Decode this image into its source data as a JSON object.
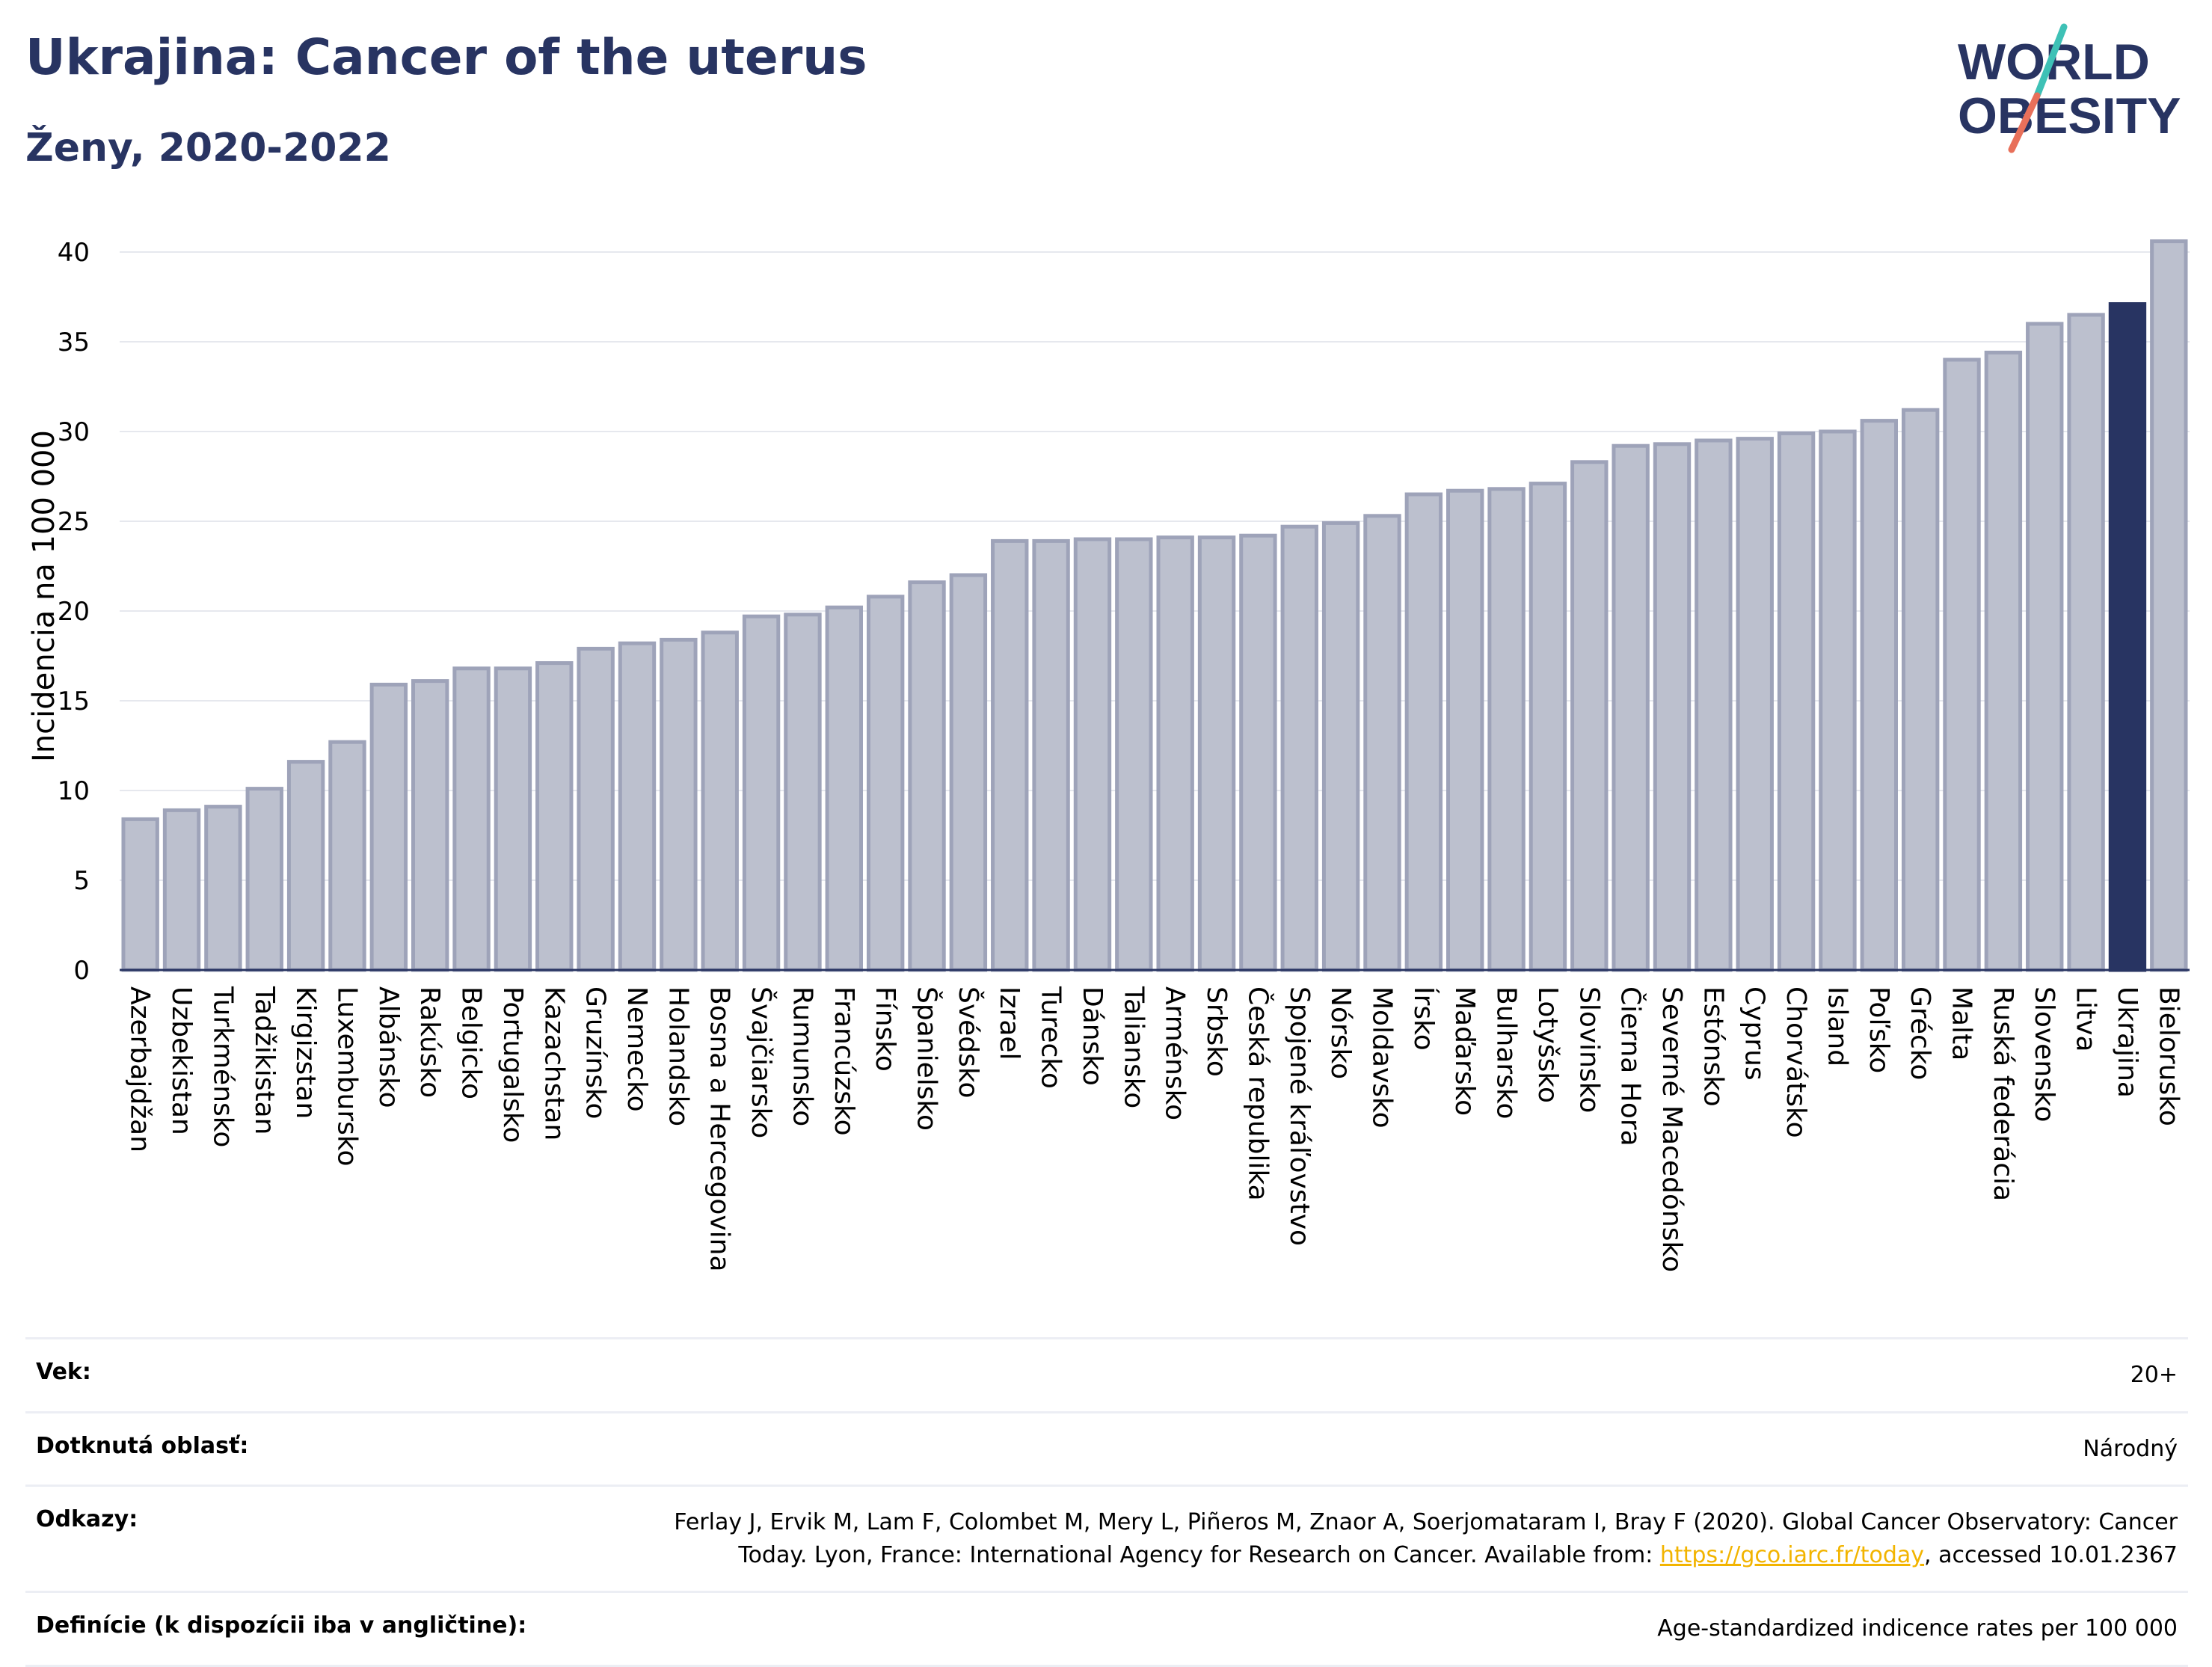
{
  "header": {
    "title": "Ukrajina: Cancer of the uterus",
    "subtitle": "Ženy, 2020-2022"
  },
  "logo": {
    "line1": "WORLD",
    "line2": "OBESITY",
    "slash_colors": [
      "#3ec1b6",
      "#e8705a"
    ]
  },
  "chart_data": {
    "type": "bar",
    "ylabel": "Incidencia na 100 000",
    "ylim": [
      0,
      40
    ],
    "yticks": [
      0,
      5,
      10,
      15,
      20,
      25,
      30,
      35,
      40
    ],
    "grid": true,
    "highlight": "Ukrajina",
    "colors": {
      "bar": "#bcc0ce",
      "bar_edge": "#9ea3b9",
      "highlight": "#283462",
      "axis": "#283462",
      "grid": "#e6e8ee"
    },
    "categories": [
      "Azerbajdžan",
      "Uzbekistan",
      "Turkménsko",
      "Tadžikistan",
      "Kirgizstan",
      "Luxembursko",
      "Albánsko",
      "Rakúsko",
      "Belgicko",
      "Portugalsko",
      "Kazachstan",
      "Gruzínsko",
      "Nemecko",
      "Holandsko",
      "Bosna a Hercegovina",
      "Švajčiarsko",
      "Rumunsko",
      "Francúzsko",
      "Fínsko",
      "Španielsko",
      "Švédsko",
      "Izrael",
      "Turecko",
      "Dánsko",
      "Taliansko",
      "Arménsko",
      "Srbsko",
      "Česká republika",
      "Spojené kráľovstvo",
      "Nórsko",
      "Moldavsko",
      "Írsko",
      "Maďarsko",
      "Bulharsko",
      "Lotyšsko",
      "Slovinsko",
      "Čierna Hora",
      "Severné Macedónsko",
      "Estónsko",
      "Cyprus",
      "Chorvátsko",
      "Island",
      "Poľsko",
      "Grécko",
      "Malta",
      "Ruská federácia",
      "Slovensko",
      "Litva",
      "Ukrajina",
      "Bielorusko"
    ],
    "values": [
      8.4,
      8.9,
      9.1,
      10.1,
      11.6,
      12.7,
      15.9,
      16.1,
      16.8,
      16.8,
      17.1,
      17.9,
      18.2,
      18.4,
      18.8,
      19.7,
      19.8,
      20.2,
      20.8,
      21.6,
      22.0,
      23.9,
      23.9,
      24.0,
      24.0,
      24.1,
      24.1,
      24.2,
      24.7,
      24.9,
      25.3,
      26.5,
      26.7,
      26.8,
      27.1,
      28.3,
      29.2,
      29.3,
      29.5,
      29.6,
      29.9,
      30.0,
      30.6,
      31.2,
      34.0,
      34.4,
      36.0,
      36.5,
      37.1,
      40.6
    ]
  },
  "meta": {
    "rows": [
      {
        "label": "Vek:",
        "value": "20+"
      },
      {
        "label": "Dotknutá oblasť:",
        "value": "Národný"
      },
      {
        "label": "Odkazy:",
        "value_line1": "Ferlay J, Ervik M, Lam F, Colombet M, Mery L, Piñeros M, Znaor A, Soerjomataram I, Bray F (2020). Global Cancer Observatory: Cancer",
        "value_line2_pre": "Today. Lyon, France: International Agency for Research on Cancer. Available from: ",
        "link": "https://gco.iarc.fr/today",
        "value_line2_post": ", accessed 10.01.2367"
      },
      {
        "label": "Definície (k dispozícii iba v angličtine):",
        "value": "Age-standardized indicence rates per 100 000"
      }
    ]
  }
}
